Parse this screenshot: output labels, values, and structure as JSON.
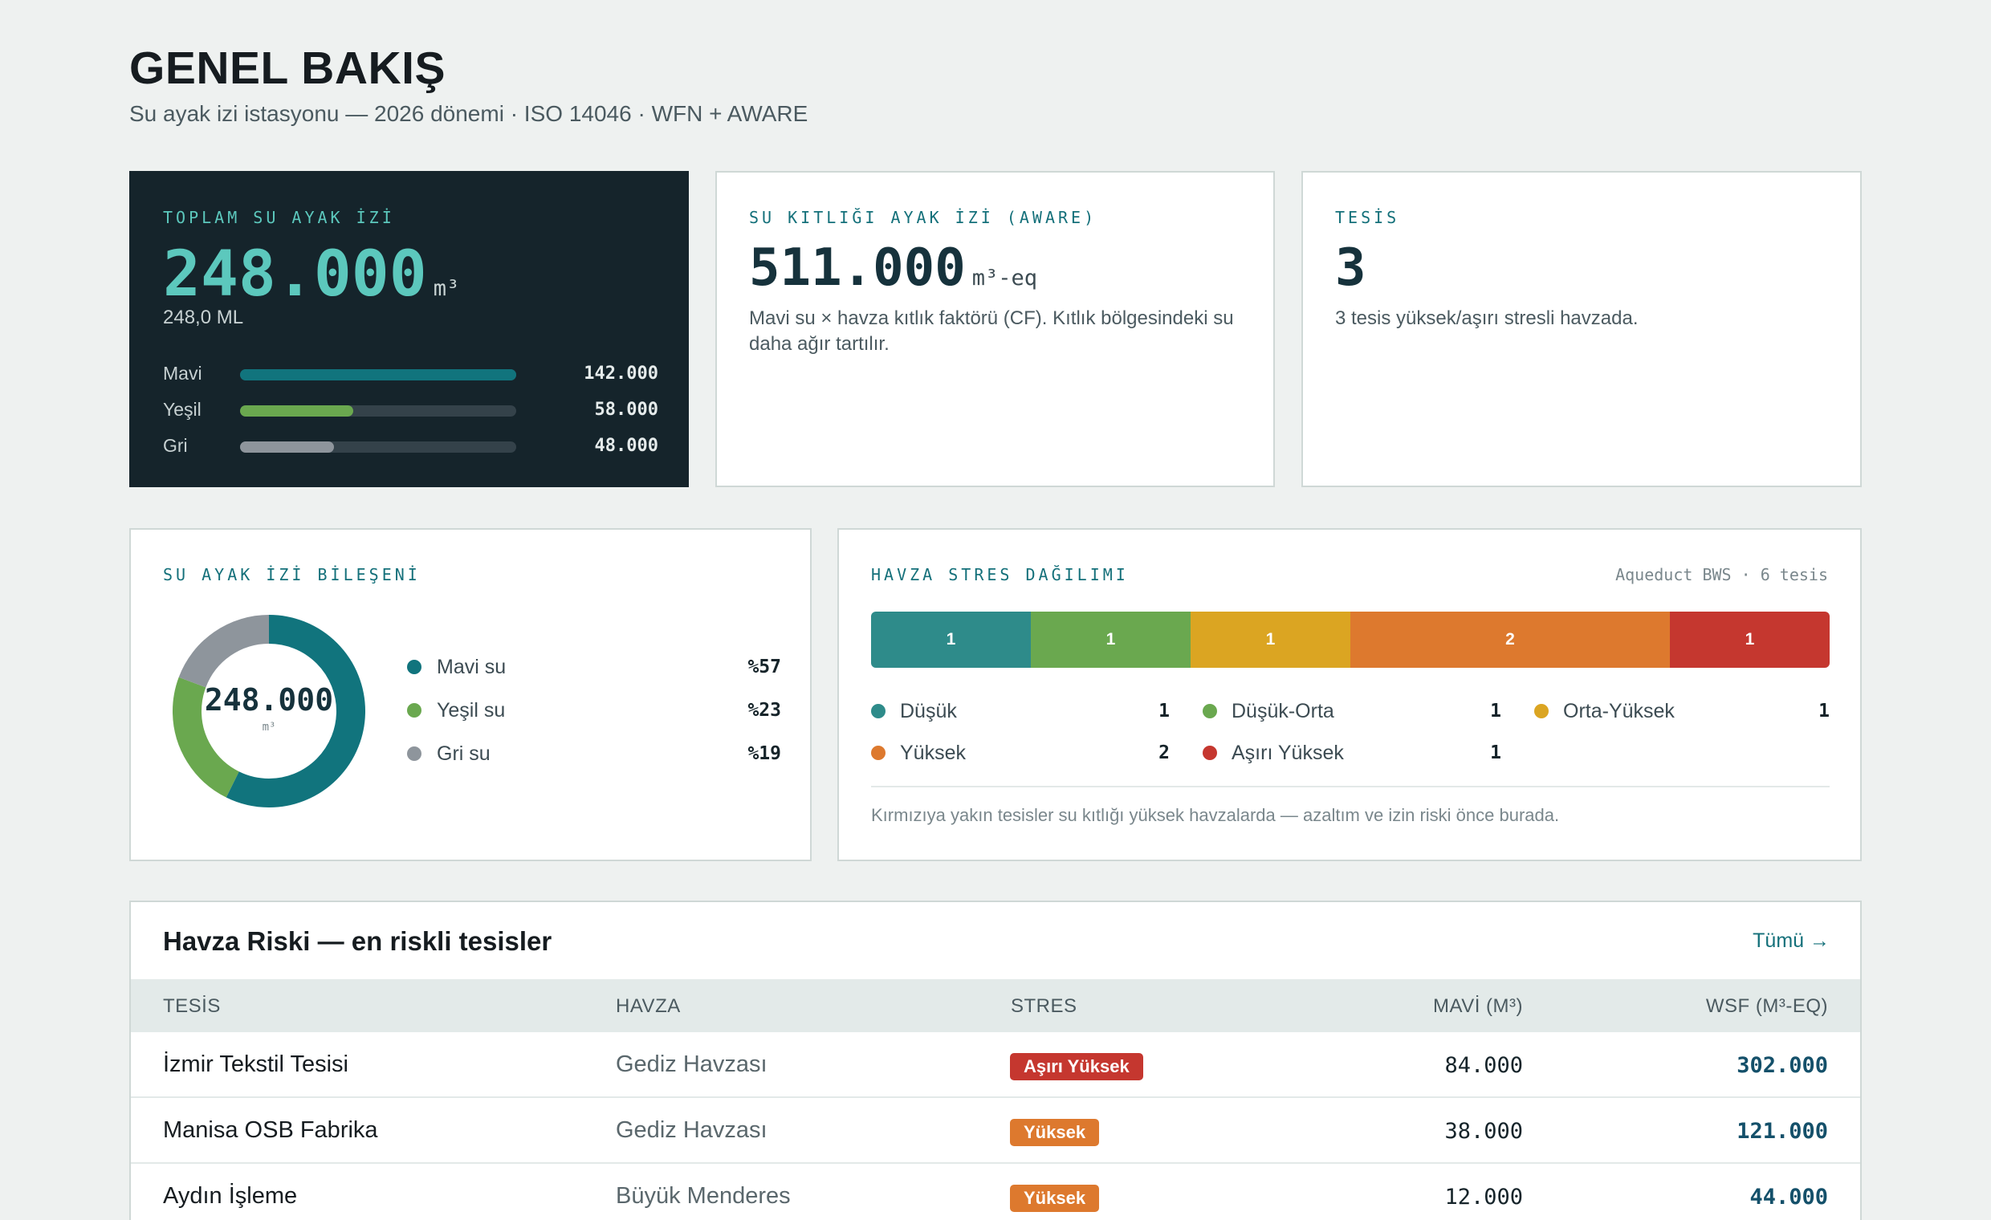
{
  "header": {
    "title": "GENEL BAKIŞ",
    "subtitle": "Su ayak izi istasyonu — 2026 dönemi · ISO 14046 · WFN + AWARE"
  },
  "total_card": {
    "label": "TOPLAM SU AYAK İZİ",
    "value": "248.000",
    "unit": "m³",
    "sub": "248,0 ML",
    "bars": [
      {
        "label": "Mavi",
        "value": "142.000",
        "fraction": 1.0,
        "color": "#11747d"
      },
      {
        "label": "Yeşil",
        "value": "58.000",
        "fraction": 0.41,
        "color": "#6aa84f"
      },
      {
        "label": "Gri",
        "value": "48.000",
        "fraction": 0.34,
        "color": "#8e959c"
      }
    ]
  },
  "aware_card": {
    "label": "SU KITLIĞI AYAK İZİ (AWARE)",
    "value": "511.000",
    "unit": "m³-eq",
    "description": "Mavi su × havza kıtlık faktörü (CF). Kıtlık bölgesindeki su daha ağır tartılır."
  },
  "facility_card": {
    "label": "TESİS",
    "value": "3",
    "description": "3 tesis yüksek/aşırı stresli havzada."
  },
  "composition": {
    "label": "SU AYAK İZİ BİLEŞENİ",
    "center_value": "248.000",
    "center_unit": "m³",
    "items": [
      {
        "name": "Mavi su",
        "percent": "%57",
        "share": 0.573,
        "color": "#11747d"
      },
      {
        "name": "Yeşil su",
        "percent": "%23",
        "share": 0.234,
        "color": "#6aa84f"
      },
      {
        "name": "Gri su",
        "percent": "%19",
        "share": 0.193,
        "color": "#8e959c"
      }
    ]
  },
  "stress": {
    "label": "HAVZA STRES DAĞILIMI",
    "meta": "Aqueduct BWS · 6 tesis",
    "segments": [
      {
        "name": "Düşük",
        "count": "1",
        "share": 1,
        "color": "#2e8b8a"
      },
      {
        "name": "Düşük-Orta",
        "count": "1",
        "share": 1,
        "color": "#6aa84f"
      },
      {
        "name": "Orta-Yüksek",
        "count": "1",
        "share": 1,
        "color": "#dba522"
      },
      {
        "name": "Yüksek",
        "count": "2",
        "share": 2,
        "color": "#dd792e"
      },
      {
        "name": "Aşırı Yüksek",
        "count": "1",
        "share": 1,
        "color": "#c5372f"
      }
    ],
    "footnote": "Kırmızıya yakın tesisler su kıtlığı yüksek havzalarda — azaltım ve izin riski önce burada."
  },
  "risk_table": {
    "title": "Havza Riski — en riskli tesisler",
    "all_link": "Tümü →",
    "columns": [
      "TESİS",
      "HAVZA",
      "STRES",
      "MAVİ (M³)",
      "WSF (M³-EQ)"
    ],
    "rows": [
      {
        "facility": "İzmir Tekstil Tesisi",
        "basin": "Gediz Havzası",
        "stress": "Aşırı Yüksek",
        "stress_color": "#c5372f",
        "blue": "84.000",
        "wsf": "302.000"
      },
      {
        "facility": "Manisa OSB Fabrika",
        "basin": "Gediz Havzası",
        "stress": "Yüksek",
        "stress_color": "#dd792e",
        "blue": "38.000",
        "wsf": "121.000"
      },
      {
        "facility": "Aydın İşleme",
        "basin": "Büyük Menderes",
        "stress": "Yüksek",
        "stress_color": "#dd792e",
        "blue": "12.000",
        "wsf": "44.000"
      }
    ]
  }
}
